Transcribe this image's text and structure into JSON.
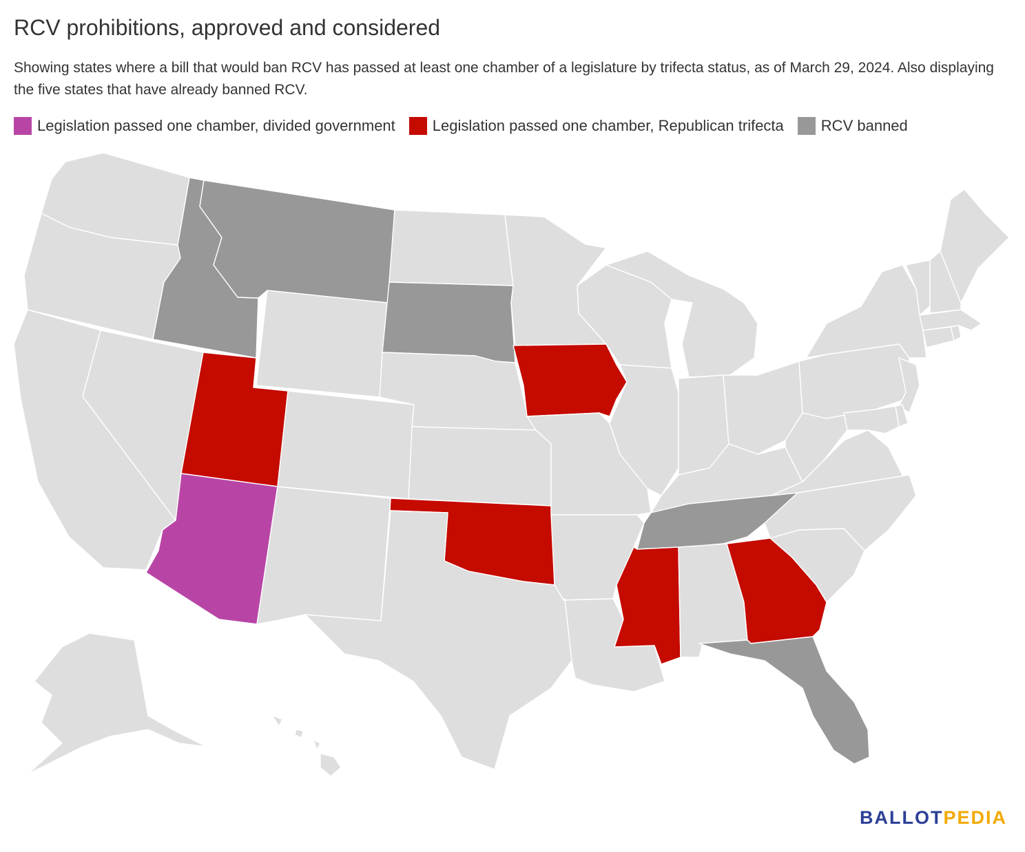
{
  "title": "RCV prohibitions, approved and considered",
  "subtitle": "Showing states where a bill that would ban RCV has passed at least one chamber of a legislature by trifecta status, as of March 29, 2024. Also displaying the five states that have already banned RCV.",
  "colors": {
    "divided": "#b845a6",
    "republican": "#c50a00",
    "banned": "#989898",
    "none": "#dedede"
  },
  "legend": [
    {
      "label": "Legislation passed one chamber, divided government",
      "category": "divided"
    },
    {
      "label": "Legislation passed one chamber, Republican trifecta",
      "category": "republican"
    },
    {
      "label": "RCV banned",
      "category": "banned"
    }
  ],
  "states": {
    "AZ": "divided",
    "UT": "republican",
    "IA": "republican",
    "OK": "republican",
    "MS": "republican",
    "GA": "republican",
    "ID": "banned",
    "MT": "banned",
    "SD": "banned",
    "TN": "banned",
    "FL": "banned"
  },
  "logo": {
    "part1": "BALLOT",
    "part2": "PEDIA"
  }
}
